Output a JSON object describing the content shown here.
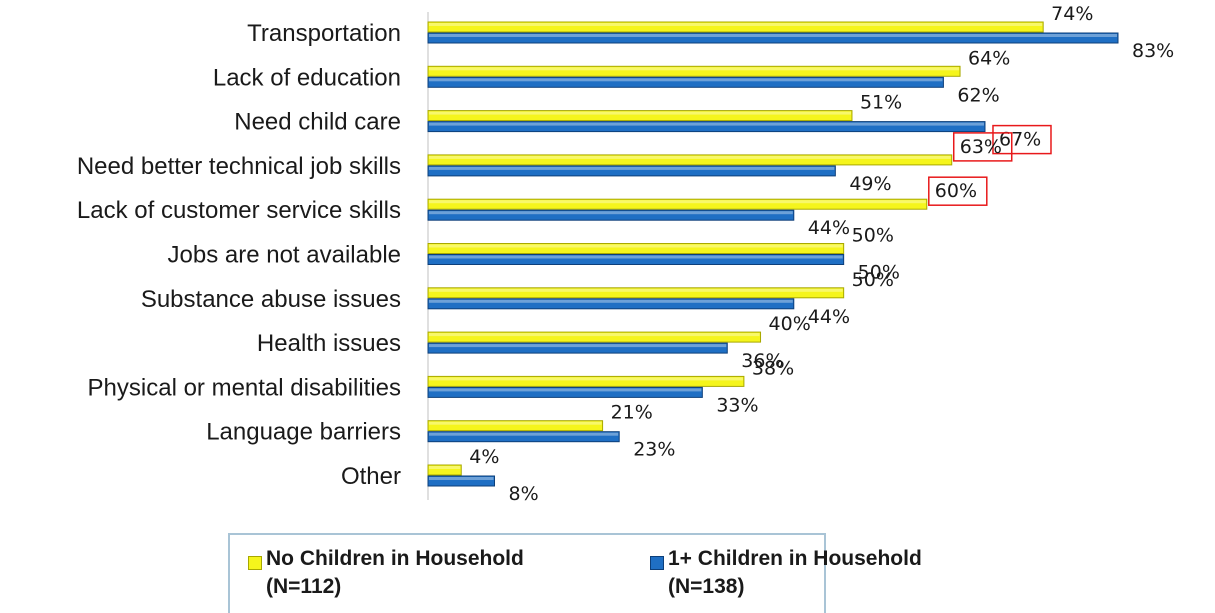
{
  "colors": {
    "no_children": "#f5f51c",
    "no_children_edge": "#a8a800",
    "children": "#1f6fc4",
    "children_edge": "#0d3f7a",
    "highlight_box": "#e8191b",
    "axis": "#c0c0c0"
  },
  "chart_data": {
    "type": "bar",
    "orientation": "horizontal",
    "categories": [
      "Transportation",
      "Lack of education",
      "Need child care",
      "Need better technical job skills",
      "Lack of customer service skills",
      "Jobs are not available",
      "Substance abuse issues",
      "Health issues",
      "Physical or mental disabilities",
      "Language barriers",
      "Other"
    ],
    "series": [
      {
        "name": "No Children in Household (N=112)",
        "values": [
          74,
          64,
          51,
          63,
          60,
          50,
          50,
          40,
          38,
          21,
          4
        ],
        "labels": [
          "74%",
          "64%",
          "51%",
          "63%",
          "60%",
          "50%",
          "50%",
          "40%",
          "38%",
          "21%",
          "4%"
        ]
      },
      {
        "name": "1+ Children in Household (N=138)",
        "values": [
          83,
          62,
          67,
          49,
          44,
          50,
          44,
          36,
          33,
          23,
          8
        ],
        "labels": [
          "83%",
          "62%",
          "67%",
          "49%",
          "44%",
          "50%",
          "44%",
          "36%",
          "33%",
          "23%",
          "8%"
        ]
      }
    ],
    "xlim": [
      0,
      85
    ],
    "highlighted": [
      {
        "category": "Need child care",
        "series": 1
      },
      {
        "category": "Need better technical job skills",
        "series": 0
      },
      {
        "category": "Lack of customer service skills",
        "series": 0
      }
    ],
    "legend_position": "bottom"
  },
  "legend": {
    "items": [
      {
        "line1": "No Children in Household",
        "line2": "(N=112)"
      },
      {
        "line1": "1+ Children in Household",
        "line2": "(N=138)"
      }
    ]
  }
}
